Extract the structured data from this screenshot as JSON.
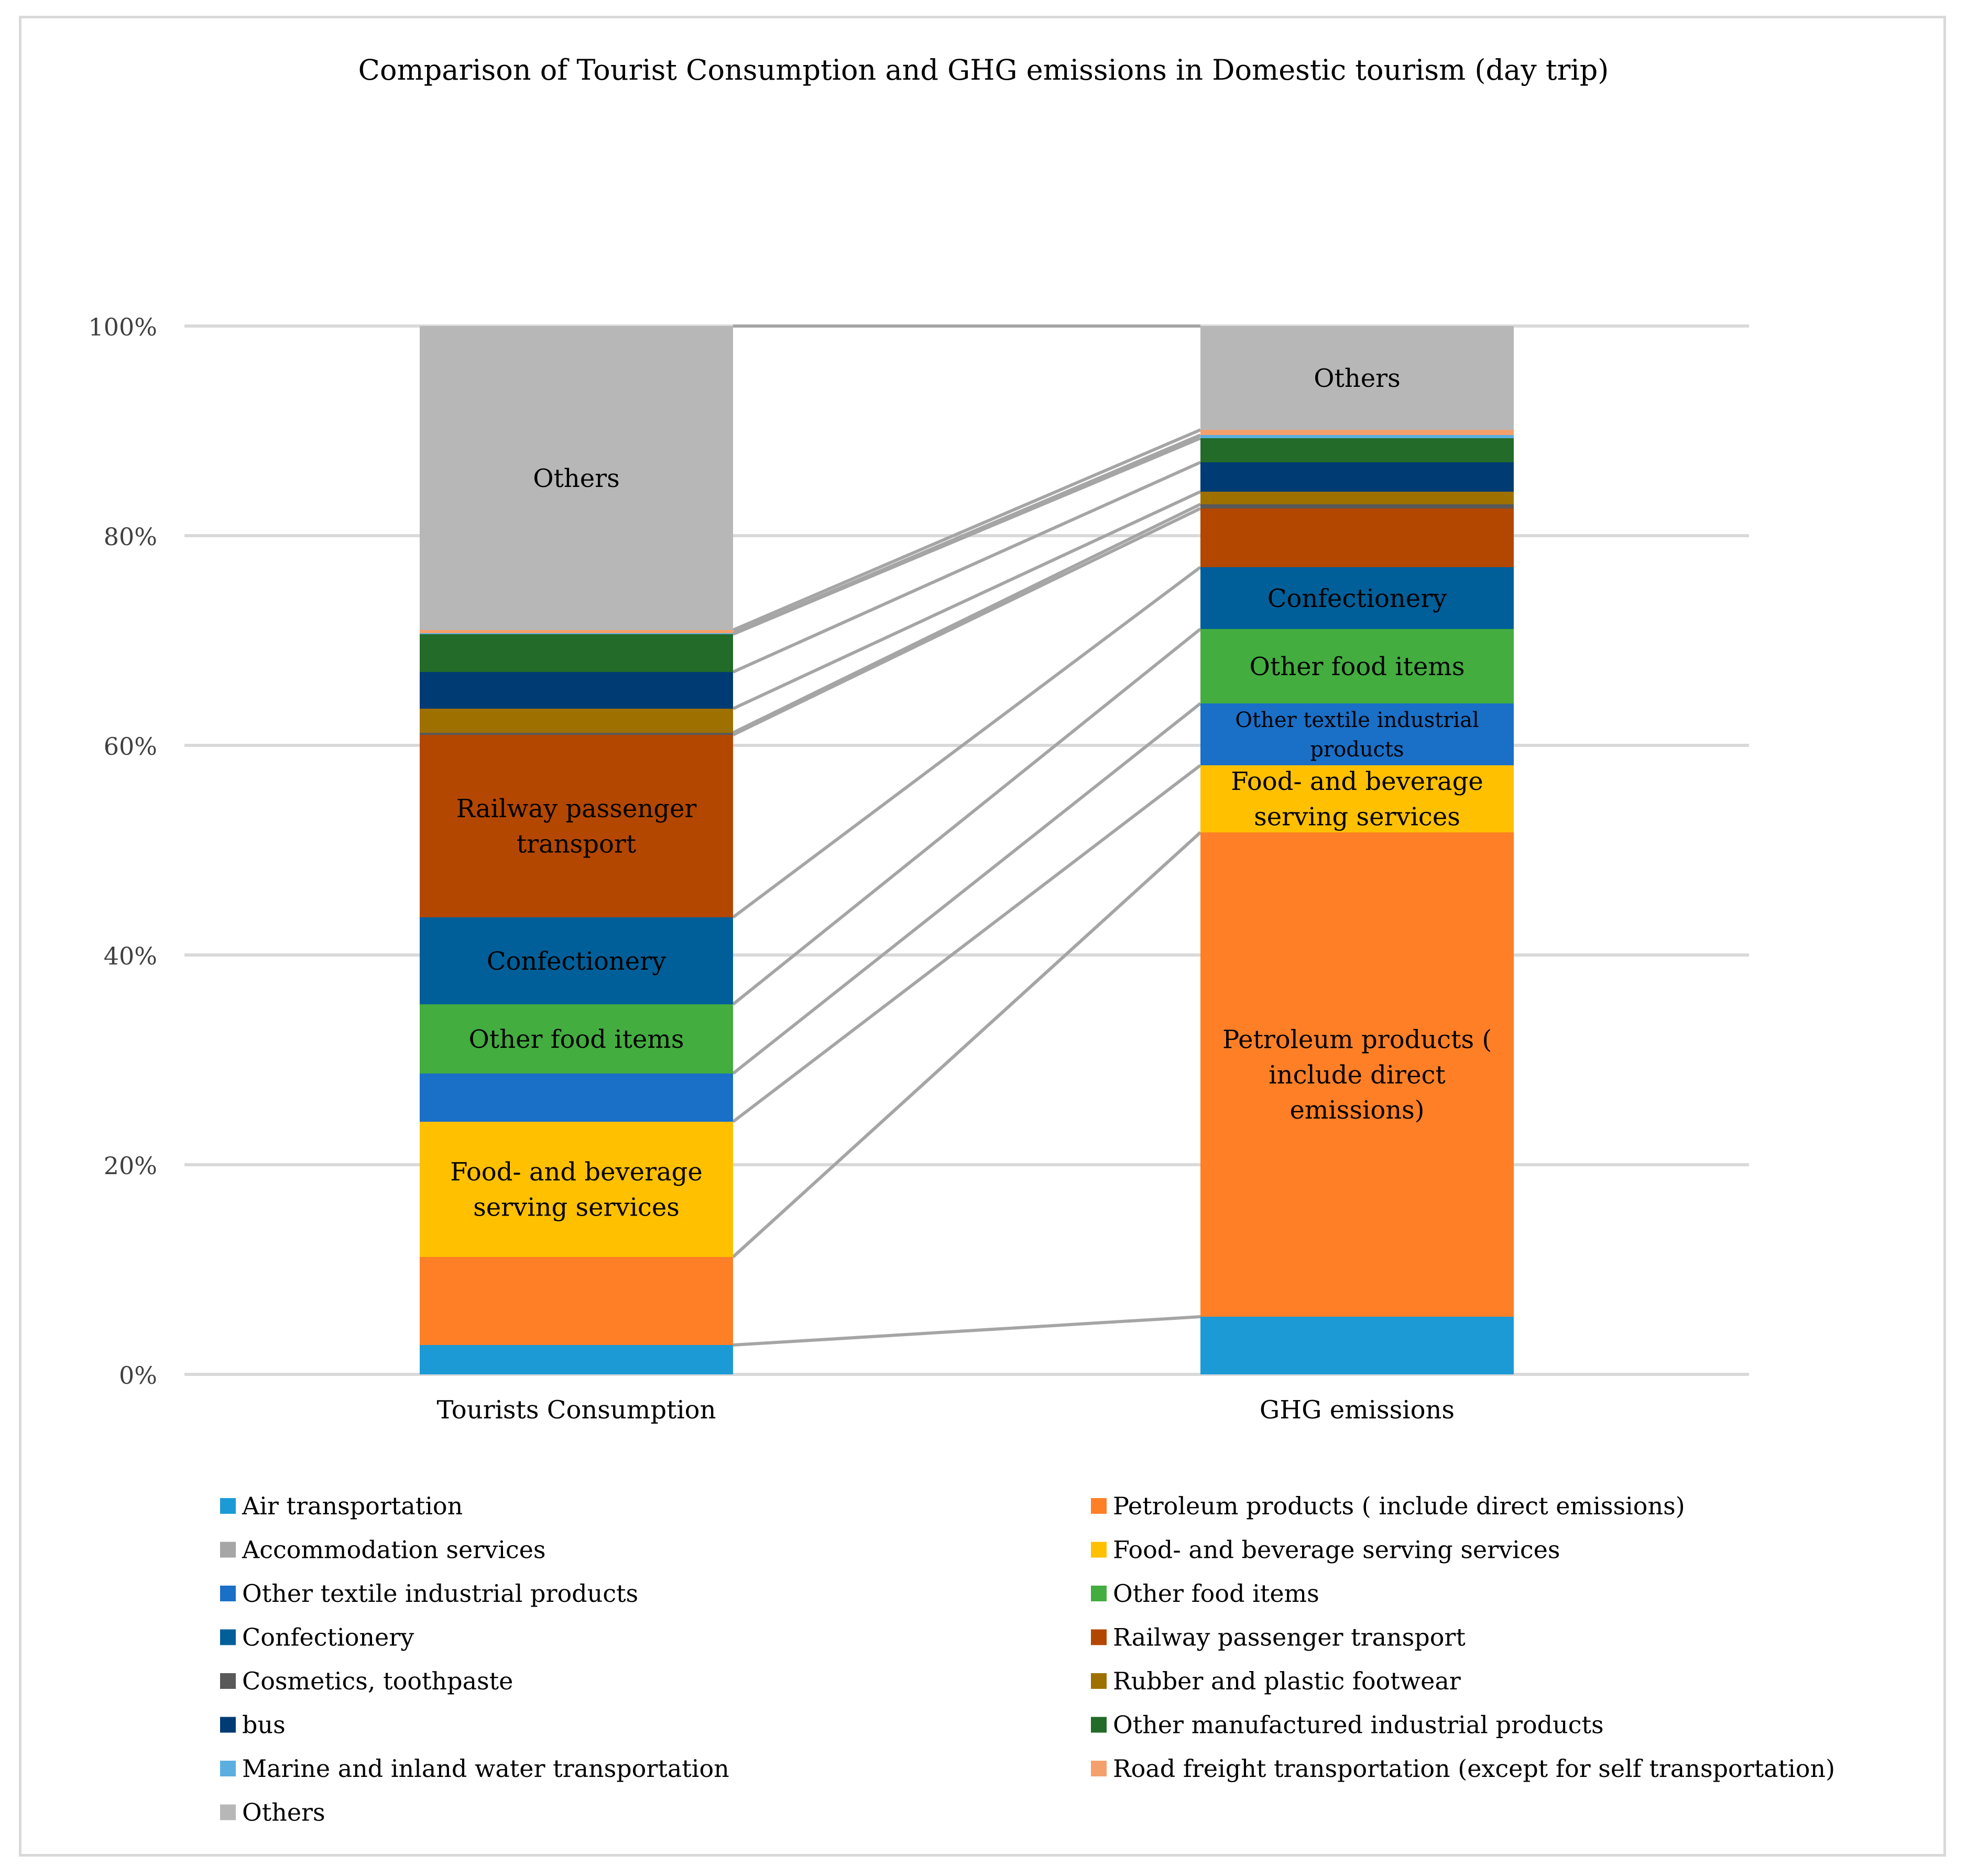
{
  "chart_data": {
    "type": "bar",
    "stacked": "percent",
    "title": "Comparison of  Tourist Consumption and GHG emissions in Domestic tourism (day trip)",
    "categories": [
      "Tourists Consumption",
      "GHG emissions"
    ],
    "y_ticks": [
      "0%",
      "20%",
      "40%",
      "60%",
      "80%",
      "100%"
    ],
    "ylim": [
      0,
      100
    ],
    "grid": true,
    "legend_position": "bottom",
    "connector_lines": true,
    "series": [
      {
        "name": "Air transportation",
        "color": "#1c9ad6",
        "values": [
          2.8,
          5.5
        ],
        "labels": [
          "",
          ""
        ]
      },
      {
        "name": "Petroleum products ( include direct emissions)",
        "color": "#ff7f27",
        "values": [
          8.4,
          46.2
        ],
        "labels": [
          "",
          "Petroleum products ( include direct emissions)"
        ]
      },
      {
        "name": "Accommodation services",
        "color": "#a6a6a6",
        "values": [
          0.0,
          0.0
        ],
        "labels": [
          "",
          ""
        ]
      },
      {
        "name": "Food- and beverage serving services",
        "color": "#ffc000",
        "values": [
          12.9,
          6.4
        ],
        "labels": [
          "Food- and beverage serving services",
          "Food- and beverage serving services"
        ]
      },
      {
        "name": "Other textile industrial products",
        "color": "#1a6fc7",
        "values": [
          4.6,
          5.9
        ],
        "labels": [
          "",
          "Other textile industrial products"
        ]
      },
      {
        "name": "Other food items",
        "color": "#43ad3f",
        "values": [
          6.6,
          7.1
        ],
        "labels": [
          "Other food items",
          "Other food items"
        ]
      },
      {
        "name": "Confectionery",
        "color": "#005f99",
        "values": [
          8.3,
          5.9
        ],
        "labels": [
          "Confectionery",
          "Confectionery"
        ]
      },
      {
        "name": "Railway passenger transport",
        "color": "#b34700",
        "values": [
          17.4,
          5.6
        ],
        "labels": [
          "Railway passenger transport",
          ""
        ]
      },
      {
        "name": "Cosmetics, toothpaste",
        "color": "#595959",
        "values": [
          0.2,
          0.4
        ],
        "labels": [
          "",
          ""
        ]
      },
      {
        "name": "Rubber and plastic footwear",
        "color": "#9e7000",
        "values": [
          2.3,
          1.2
        ],
        "labels": [
          "",
          ""
        ]
      },
      {
        "name": "bus",
        "color": "#003b73",
        "values": [
          3.5,
          2.8
        ],
        "labels": [
          "",
          ""
        ]
      },
      {
        "name": "Other manufactured industrial products",
        "color": "#236b28",
        "values": [
          3.6,
          2.3
        ],
        "labels": [
          "",
          ""
        ]
      },
      {
        "name": "Marine and inland water transportation",
        "color": "#5aaee0",
        "values": [
          0.1,
          0.3
        ],
        "labels": [
          "",
          ""
        ]
      },
      {
        "name": "Road freight transportation (except for self transportation)",
        "color": "#f4a06c",
        "values": [
          0.3,
          0.5
        ],
        "labels": [
          "",
          ""
        ]
      },
      {
        "name": "Others",
        "color": "#b7b7b7",
        "values": [
          29.0,
          9.9
        ],
        "labels": [
          "Others",
          "Others"
        ]
      }
    ]
  }
}
